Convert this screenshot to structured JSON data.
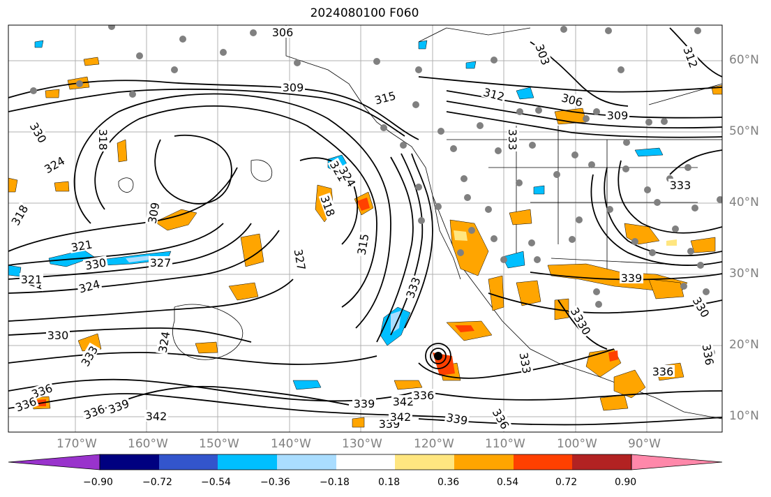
{
  "title": "2024080100 F060",
  "lat_labels": [
    "60°N",
    "50°N",
    "40°N",
    "30°N",
    "20°N",
    "10°N"
  ],
  "lon_labels": [
    "170°W",
    "160°W",
    "150°W",
    "140°W",
    "130°W",
    "120°W",
    "110°W",
    "100°W",
    "90°W"
  ],
  "contour_labels": [
    "306",
    "303",
    "312",
    "309",
    "315",
    "312",
    "306",
    "309",
    "333",
    "318",
    "330",
    "324",
    "318",
    "309",
    "321",
    "330",
    "327",
    "321",
    "324",
    "321",
    "318",
    "315",
    "327",
    "333",
    "330",
    "324",
    "330",
    "333",
    "336",
    "339",
    "342",
    "336",
    "339",
    "342",
    "336",
    "339",
    "336",
    "333",
    "336",
    "339",
    "330",
    "333",
    "336",
    "339",
    "342",
    "336",
    "321",
    "330",
    "324"
  ],
  "colorbar": {
    "ticks": [
      "−0.90",
      "−0.72",
      "−0.54",
      "−0.36",
      "−0.18",
      "0.18",
      "0.36",
      "0.54",
      "0.72",
      "0.90"
    ],
    "colors": [
      "#9933cc",
      "#000080",
      "#3355cc",
      "#00bfff",
      "#aaddff",
      "#ffffff",
      "#ffe680",
      "#ffa500",
      "#ff4000",
      "#b22222",
      "#ff88aa",
      "#ff88aa"
    ]
  },
  "colors": {
    "negative_shades": [
      "#00bfff",
      "#aaddff"
    ],
    "positive_shades": [
      "#ffa500",
      "#ff4000",
      "#ffe680"
    ],
    "station_dot": "#808080",
    "grid": "#b0b0b0"
  },
  "storm_icon": "tropical-cyclone-icon"
}
